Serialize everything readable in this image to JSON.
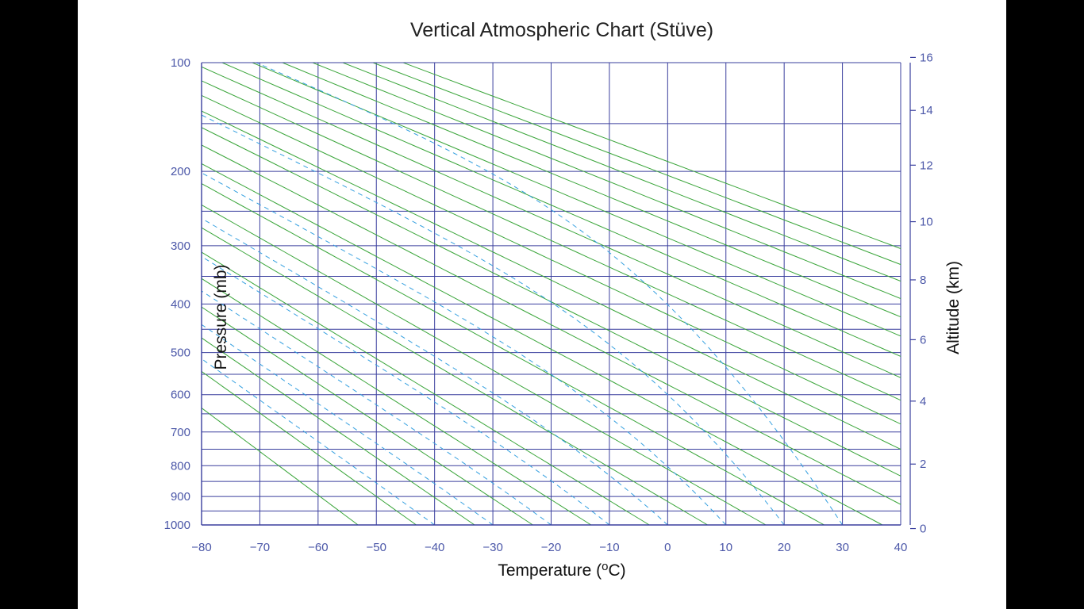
{
  "chart_data": {
    "type": "line",
    "title": "Vertical Atmospheric Chart (Stüve)",
    "xlabel_main": "Temperature (",
    "xlabel_sup": "o",
    "xlabel_end": "C)",
    "ylabel": "Pressure (mb)",
    "y2label": "Altitude (km)",
    "xlim": [
      -80,
      40
    ],
    "ylim": [
      1000,
      100
    ],
    "y_axis_scale": "Stüve: linear in pressure^0.286, pressure decreasing upward",
    "x_ticks": [
      -80,
      -70,
      -60,
      -50,
      -40,
      -30,
      -20,
      -10,
      0,
      10,
      20,
      30,
      40
    ],
    "y_ticks": [
      100,
      200,
      300,
      400,
      500,
      600,
      700,
      800,
      900,
      1000
    ],
    "y2_ticks": [
      0,
      2,
      4,
      6,
      8,
      10,
      12,
      14,
      16
    ],
    "y2_unit": "km",
    "grid": {
      "isotherms_every_C": 10,
      "isobars_mb": [
        150,
        200,
        250,
        300,
        350,
        400,
        450,
        500,
        550,
        600,
        650,
        700,
        750,
        800,
        850,
        900,
        950,
        1000
      ]
    },
    "dry_adiabats": {
      "style": "solid green",
      "theta_K": [
        220,
        230,
        240,
        250,
        260,
        270,
        280,
        290,
        300,
        310,
        320,
        330,
        340,
        350,
        360,
        370,
        380,
        390,
        400,
        410,
        420,
        430,
        440
      ]
    },
    "moist_adiabats": {
      "style": "dashed light blue",
      "start_temp_C_at_1000mb": [
        -40,
        -30,
        -20,
        -10,
        0,
        10,
        20,
        30
      ]
    }
  },
  "colors": {
    "grid": "#3a3f9e",
    "dry_adiabat": "#3aa53a",
    "moist_adiabat": "#35a0e0",
    "tick_text": "#4b57a8",
    "slide_background": "#ffffff",
    "page_background": "#000000"
  }
}
